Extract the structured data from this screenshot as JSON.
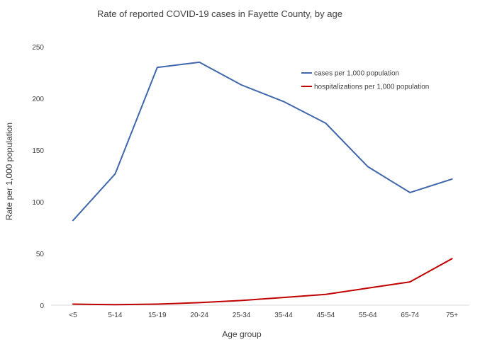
{
  "chart_data": {
    "type": "line",
    "title": "Rate of reported COVID-19 cases in Fayette County, by age",
    "xlabel": "Age group",
    "ylabel": "Rate per 1,000 population",
    "categories": [
      "<5",
      "5-14",
      "15-19",
      "20-24",
      "25-34",
      "35-44",
      "45-54",
      "55-64",
      "65-74",
      "75+"
    ],
    "ylim": [
      0,
      250
    ],
    "yticks": [
      0,
      50,
      100,
      150,
      200,
      250
    ],
    "grid": false,
    "legend_position": "top-right",
    "series": [
      {
        "name": "cases per 1,000 population",
        "color": "#4067ab",
        "values": [
          82,
          127,
          230,
          235,
          213,
          197,
          176,
          134,
          109,
          122
        ]
      },
      {
        "name": "hospitalizations per 1,000 population",
        "color": "#c00000",
        "values": [
          1,
          0.5,
          1,
          2.5,
          4.5,
          7.5,
          10.5,
          16.5,
          22.5,
          45
        ]
      }
    ]
  }
}
